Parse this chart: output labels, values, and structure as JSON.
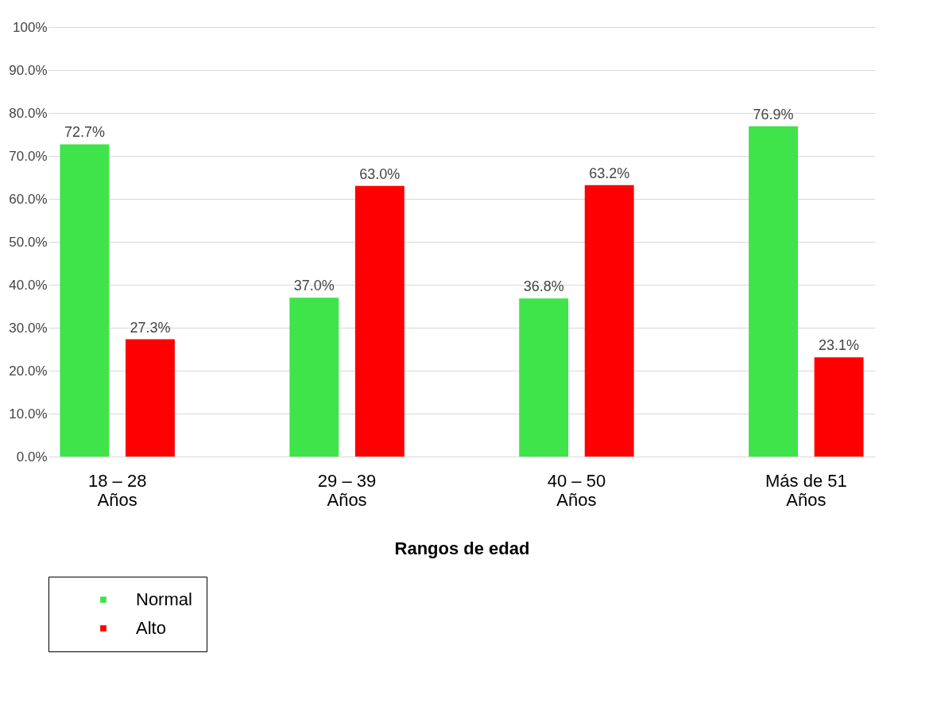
{
  "chart_data": {
    "type": "bar",
    "xlabel": "Rangos de edad",
    "categories": [
      "18 – 28 Años",
      "29 – 39 Años",
      "40 – 50 Años",
      "Más de 51 Años"
    ],
    "series": [
      {
        "name": "Normal",
        "color": "#3fe34a",
        "values": [
          72.7,
          37.0,
          36.8,
          76.9
        ],
        "value_labels": [
          "72.7%",
          "37.0%",
          "36.8%",
          "76.9%"
        ]
      },
      {
        "name": "Alto",
        "color": "#ff0000",
        "values": [
          27.3,
          63.0,
          63.2,
          23.1
        ],
        "value_labels": [
          "27.3%",
          "63.0%",
          "63.2%",
          "23.1%"
        ]
      }
    ],
    "ylim": [
      0,
      100
    ],
    "yticks": [
      {
        "value": 0,
        "label": "0.0%"
      },
      {
        "value": 10,
        "label": "10.0%"
      },
      {
        "value": 20,
        "label": "20.0%"
      },
      {
        "value": 30,
        "label": "30.0%"
      },
      {
        "value": 40,
        "label": "40.0%"
      },
      {
        "value": 50,
        "label": "50.0%"
      },
      {
        "value": 60,
        "label": "60.0%"
      },
      {
        "value": 70,
        "label": "70.0%"
      },
      {
        "value": 80,
        "label": "80.0%"
      },
      {
        "value": 90,
        "label": "90.0%"
      },
      {
        "value": 100,
        "label": "100%"
      }
    ],
    "grid": "y",
    "legend": "bottom"
  }
}
